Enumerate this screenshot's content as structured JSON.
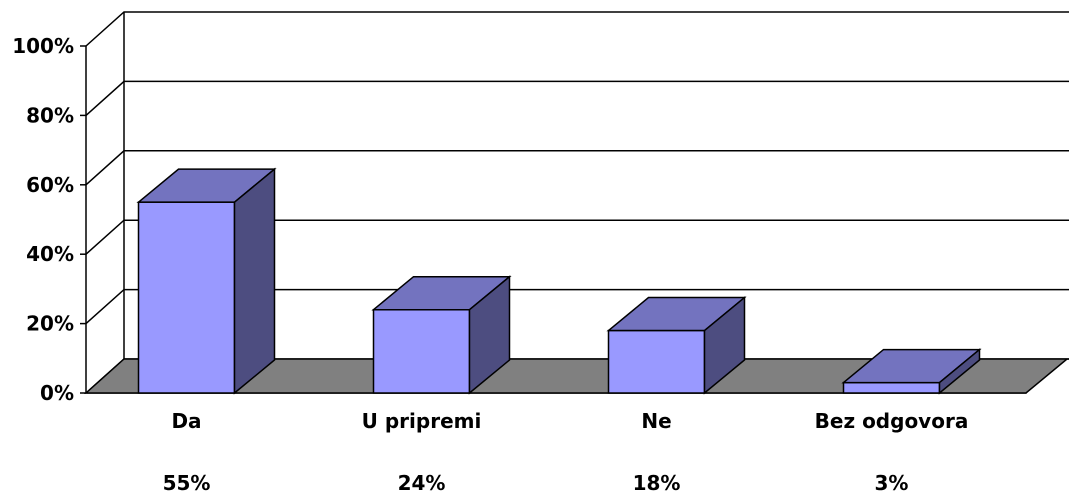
{
  "chart_data": {
    "type": "bar",
    "title": "",
    "xlabel": "",
    "ylabel": "",
    "categories": [
      "Da",
      "U pripremi",
      "Ne",
      "Bez odgovora"
    ],
    "values": [
      55,
      24,
      18,
      3
    ],
    "value_labels": [
      "55%",
      "24%",
      "18%",
      "3%"
    ],
    "ylim": [
      0,
      100
    ],
    "y_ticks": [
      0,
      20,
      40,
      60,
      80,
      100
    ],
    "y_tick_labels": [
      "0%",
      "20%",
      "40%",
      "60%",
      "80%",
      "100%"
    ],
    "grid": true,
    "style": "3d-column",
    "colors": {
      "bar_front": "#9999ff",
      "bar_top": "#7373bf",
      "bar_side": "#4d4d80",
      "floor": "#808080"
    }
  }
}
